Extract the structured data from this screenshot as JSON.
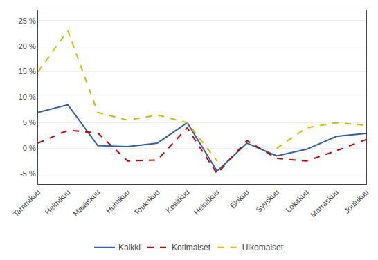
{
  "chart_data": {
    "type": "line",
    "categories": [
      "Tammikuu",
      "Helmikuu",
      "Maaliskuu",
      "Huhtikuu",
      "Toukokuu",
      "Kesäkuu",
      "Heinäkuu",
      "Elokuu",
      "Syyskuu",
      "Lokakuu",
      "Marraskuu",
      "Joulukuu"
    ],
    "series": [
      {
        "name": "Kaikki",
        "color": "#3060a0",
        "line_style": "solid",
        "values": [
          7.0,
          8.5,
          0.5,
          0.3,
          1.0,
          5.0,
          -4.5,
          1.0,
          -1.5,
          -0.2,
          2.3,
          2.9
        ]
      },
      {
        "name": "Kotimaiset",
        "color": "#c00000",
        "line_style": "dashed",
        "values": [
          1.0,
          3.5,
          3.0,
          -2.5,
          -2.3,
          4.0,
          -5.0,
          1.5,
          -2.0,
          -2.5,
          -0.5,
          1.7
        ]
      },
      {
        "name": "Ulkomaiset",
        "color": "#d4b800",
        "line_style": "dashed",
        "values": [
          15.0,
          23.0,
          7.0,
          5.5,
          6.5,
          5.0,
          -2.5,
          null,
          0.0,
          4.0,
          5.0,
          4.5
        ]
      }
    ],
    "ylim": [
      -7,
      27
    ],
    "yticks": [
      {
        "value": -5,
        "label": "-5 %"
      },
      {
        "value": 0,
        "label": "0 %"
      },
      {
        "value": 5,
        "label": "5 %"
      },
      {
        "value": 10,
        "label": "10 %"
      },
      {
        "value": 15,
        "label": "15 %"
      },
      {
        "value": 20,
        "label": "20 %"
      },
      {
        "value": 25,
        "label": "25 %"
      }
    ],
    "grid": true,
    "legend": "bottom"
  }
}
